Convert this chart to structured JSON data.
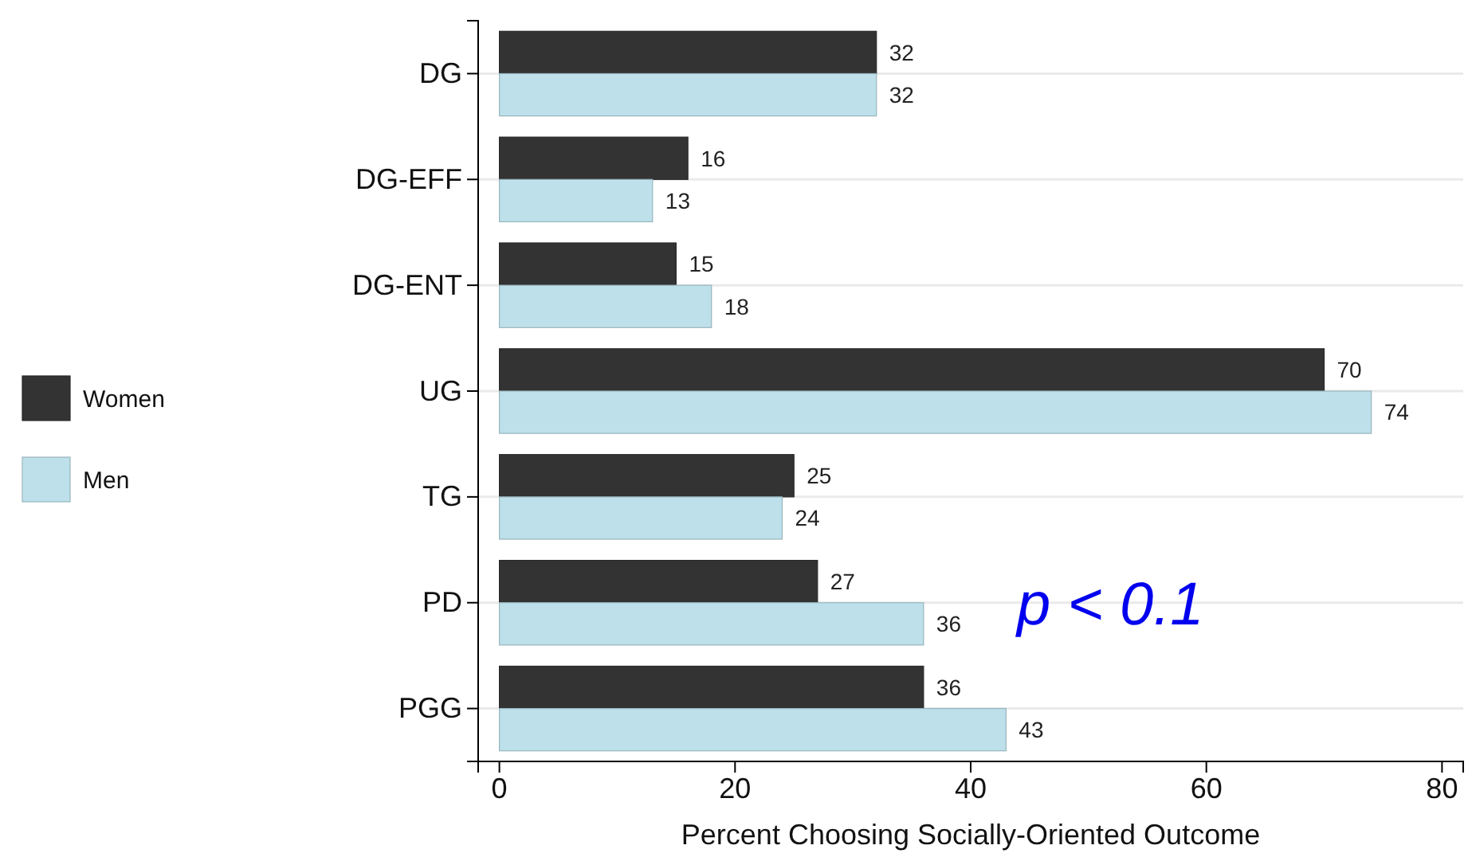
{
  "chart_data": {
    "type": "bar",
    "orientation": "horizontal",
    "categories": [
      "DG",
      "DG-EFF",
      "DG-ENT",
      "UG",
      "TG",
      "PD",
      "PGG"
    ],
    "series": [
      {
        "name": "Women",
        "color": "#333333",
        "values": [
          32,
          16,
          15,
          70,
          25,
          27,
          36
        ]
      },
      {
        "name": "Men",
        "color": "#bde0ea",
        "values": [
          32,
          13,
          18,
          74,
          24,
          36,
          43
        ]
      }
    ],
    "xlabel": "Percent Choosing Socially-Oriented Outcome",
    "xlim": [
      -1.8,
      81.8
    ],
    "xticks": [
      0,
      20,
      40,
      60,
      80
    ],
    "data_labels": true,
    "grid": "y",
    "legend": "left",
    "annotations": [
      "p < 0.1"
    ]
  }
}
